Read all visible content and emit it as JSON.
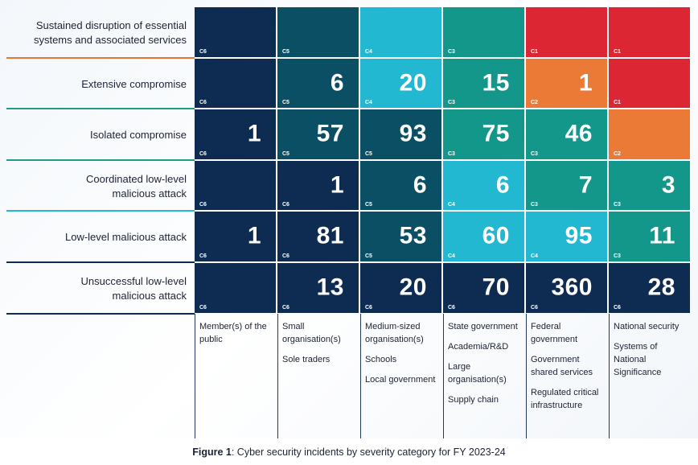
{
  "colors": {
    "C1": "#dd2633",
    "C2": "#ea7a35",
    "C3": "#13978a",
    "C4": "#22b8d2",
    "C5": "#0b4f64",
    "C6": "#0e2c52"
  },
  "chart_data": {
    "type": "table",
    "title": "Cyber security incidents by severity category for FY 2023-24",
    "caption_prefix": "Figure 1",
    "caption_text": ": Cyber security incidents by severity category for FY 2023-24",
    "rows": [
      "Sustained disruption of essential systems and associated services",
      "Extensive compromise",
      "Isolated compromise",
      "Coordinated low-level malicious attack",
      "Low-level malicious attack",
      "Unsuccessful low-level malicious attack"
    ],
    "columns": [
      [
        "Member(s) of the public"
      ],
      [
        "Small organisation(s)",
        "Sole traders"
      ],
      [
        "Medium-sized organisation(s)",
        "Schools",
        "Local government"
      ],
      [
        "State government",
        "Academia/R&D",
        "Large organisation(s)",
        "Supply chain"
      ],
      [
        "Federal government",
        "Government shared services",
        "Regulated critical infrastructure"
      ],
      [
        "National security",
        "Systems of National Significance"
      ]
    ],
    "values": [
      [
        null,
        null,
        null,
        null,
        null,
        null
      ],
      [
        null,
        6,
        20,
        15,
        1,
        null
      ],
      [
        1,
        57,
        93,
        75,
        46,
        null
      ],
      [
        null,
        1,
        6,
        6,
        7,
        3
      ],
      [
        1,
        81,
        53,
        60,
        95,
        11
      ],
      [
        null,
        13,
        20,
        70,
        360,
        28
      ]
    ],
    "categories": [
      [
        "C6",
        "C5",
        "C4",
        "C3",
        "C1",
        "C1"
      ],
      [
        "C6",
        "C5",
        "C4",
        "C3",
        "C2",
        "C1"
      ],
      [
        "C6",
        "C5",
        "C5",
        "C3",
        "C3",
        "C2"
      ],
      [
        "C6",
        "C6",
        "C5",
        "C4",
        "C3",
        "C3"
      ],
      [
        "C6",
        "C6",
        "C5",
        "C4",
        "C4",
        "C3"
      ],
      [
        "C6",
        "C6",
        "C6",
        "C6",
        "C6",
        "C6"
      ]
    ]
  }
}
